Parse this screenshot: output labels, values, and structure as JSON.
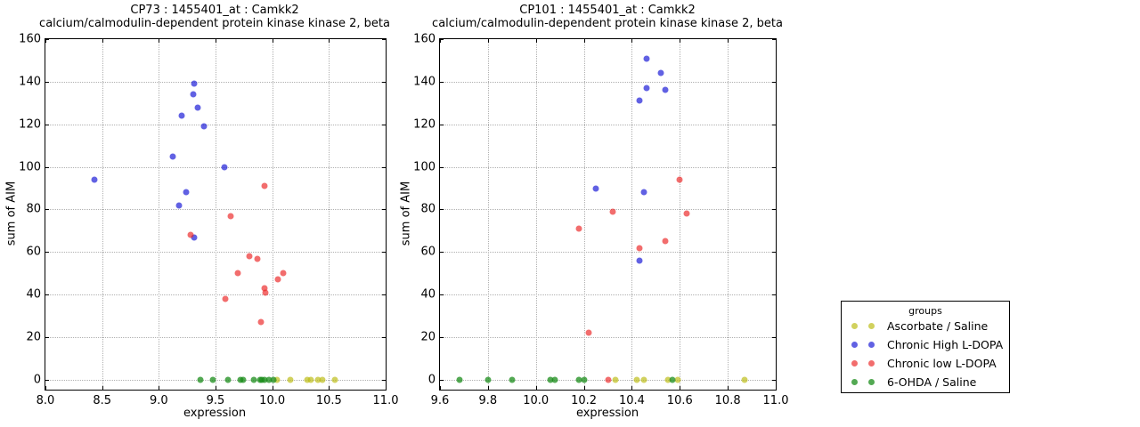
{
  "figure": {
    "background": "#ffffff"
  },
  "colors": {
    "ascorbate_saline": "rgba(190,190,25,0.7)",
    "chronic_high_ldopa": "rgba(30,30,215,0.7)",
    "chronic_low_ldopa": "rgba(235,30,30,0.65)",
    "ohda_saline": "rgba(25,140,25,0.75)",
    "grid": "#b0b0b0",
    "spine": "#000000"
  },
  "legend": {
    "title": "groups",
    "entries": [
      {
        "label": "Ascorbate / Saline",
        "color": "rgba(190,190,25,0.7)"
      },
      {
        "label": "Chronic High L-DOPA",
        "color": "rgba(30,30,215,0.7)"
      },
      {
        "label": "Chronic low L-DOPA",
        "color": "rgba(235,30,30,0.65)"
      },
      {
        "label": "6-OHDA / Saline",
        "color": "rgba(25,140,25,0.75)"
      }
    ]
  },
  "chart_data": [
    {
      "type": "scatter",
      "title": "CP73 : 1455401_at : Camkk2",
      "subtitle": "calcium/calmodulin-dependent protein kinase kinase 2, beta",
      "xlabel": "expression",
      "ylabel": "sum of AIM",
      "xlim": [
        8.0,
        11.0
      ],
      "ylim": [
        -4.6,
        160
      ],
      "grid": true,
      "xticks": [
        8.0,
        8.5,
        9.0,
        9.5,
        10.0,
        10.5,
        11.0
      ],
      "xtick_labels": [
        "8.0",
        "8.5",
        "9.0",
        "9.5",
        "10.0",
        "10.5",
        "11.0"
      ],
      "yticks": [
        0,
        20,
        40,
        60,
        80,
        100,
        120,
        140,
        160
      ],
      "ytick_labels": [
        "0",
        "20",
        "40",
        "60",
        "80",
        "100",
        "120",
        "140",
        "160"
      ],
      "series": [
        {
          "name": "Ascorbate / Saline",
          "color": "rgba(190,190,25,0.7)",
          "points": [
            [
              10.04,
              0
            ],
            [
              10.16,
              0
            ],
            [
              10.31,
              0
            ],
            [
              10.34,
              0
            ],
            [
              10.4,
              0
            ],
            [
              10.44,
              0
            ],
            [
              10.55,
              0
            ]
          ]
        },
        {
          "name": "Chronic High L-DOPA",
          "color": "rgba(30,30,215,0.7)",
          "points": [
            [
              8.43,
              94
            ],
            [
              9.12,
              105
            ],
            [
              9.18,
              82
            ],
            [
              9.2,
              124
            ],
            [
              9.24,
              88
            ],
            [
              9.3,
              134
            ],
            [
              9.31,
              139
            ],
            [
              9.34,
              128
            ],
            [
              9.4,
              119
            ],
            [
              9.58,
              100
            ],
            [
              9.31,
              67
            ]
          ]
        },
        {
          "name": "Chronic low L-DOPA",
          "color": "rgba(235,30,30,0.65)",
          "points": [
            [
              9.28,
              68
            ],
            [
              9.59,
              38
            ],
            [
              9.63,
              77
            ],
            [
              9.7,
              50
            ],
            [
              9.8,
              58
            ],
            [
              9.87,
              57
            ],
            [
              9.9,
              27
            ],
            [
              9.93,
              91
            ],
            [
              9.93,
              43
            ],
            [
              9.94,
              41
            ],
            [
              10.05,
              47
            ],
            [
              10.1,
              50
            ]
          ]
        },
        {
          "name": "6-OHDA / Saline",
          "color": "rgba(25,140,25,0.75)",
          "points": [
            [
              9.37,
              0
            ],
            [
              9.48,
              0
            ],
            [
              9.61,
              0
            ],
            [
              9.72,
              0
            ],
            [
              9.74,
              0
            ],
            [
              9.84,
              0
            ],
            [
              9.89,
              0
            ],
            [
              9.91,
              0
            ],
            [
              9.93,
              0
            ],
            [
              9.97,
              0
            ],
            [
              10.01,
              0
            ]
          ]
        }
      ]
    },
    {
      "type": "scatter",
      "title": "CP101 : 1455401_at : Camkk2",
      "subtitle": "calcium/calmodulin-dependent protein kinase kinase 2, beta",
      "xlabel": "expression",
      "ylabel": "sum of AIM",
      "xlim": [
        9.6,
        11.0
      ],
      "ylim": [
        -4.6,
        160
      ],
      "grid": true,
      "xticks": [
        9.6,
        9.8,
        10.0,
        10.2,
        10.4,
        10.6,
        10.8,
        11.0
      ],
      "xtick_labels": [
        "9.6",
        "9.8",
        "10.0",
        "10.2",
        "10.4",
        "10.6",
        "10.8",
        "11.0"
      ],
      "yticks": [
        0,
        20,
        40,
        60,
        80,
        100,
        120,
        140,
        160
      ],
      "ytick_labels": [
        "0",
        "20",
        "40",
        "60",
        "80",
        "100",
        "120",
        "140",
        "160"
      ],
      "series": [
        {
          "name": "Ascorbate / Saline",
          "color": "rgba(190,190,25,0.7)",
          "points": [
            [
              10.33,
              0
            ],
            [
              10.42,
              0
            ],
            [
              10.45,
              0
            ],
            [
              10.55,
              0
            ],
            [
              10.59,
              0
            ],
            [
              10.87,
              0
            ]
          ]
        },
        {
          "name": "Chronic High L-DOPA",
          "color": "rgba(30,30,215,0.7)",
          "points": [
            [
              10.25,
              90
            ],
            [
              10.43,
              131
            ],
            [
              10.43,
              56
            ],
            [
              10.45,
              88
            ],
            [
              10.46,
              151
            ],
            [
              10.46,
              137
            ],
            [
              10.52,
              144
            ],
            [
              10.54,
              136
            ]
          ]
        },
        {
          "name": "Chronic low L-DOPA",
          "color": "rgba(235,30,30,0.65)",
          "points": [
            [
              10.18,
              71
            ],
            [
              10.22,
              22
            ],
            [
              10.3,
              0
            ],
            [
              10.32,
              79
            ],
            [
              10.43,
              62
            ],
            [
              10.54,
              65
            ],
            [
              10.6,
              94
            ],
            [
              10.63,
              78
            ]
          ]
        },
        {
          "name": "6-OHDA / Saline",
          "color": "rgba(25,140,25,0.75)",
          "points": [
            [
              9.68,
              0
            ],
            [
              9.8,
              0
            ],
            [
              9.9,
              0
            ],
            [
              10.06,
              0
            ],
            [
              10.08,
              0
            ],
            [
              10.18,
              0
            ],
            [
              10.2,
              0
            ],
            [
              10.57,
              0
            ]
          ]
        }
      ]
    }
  ]
}
